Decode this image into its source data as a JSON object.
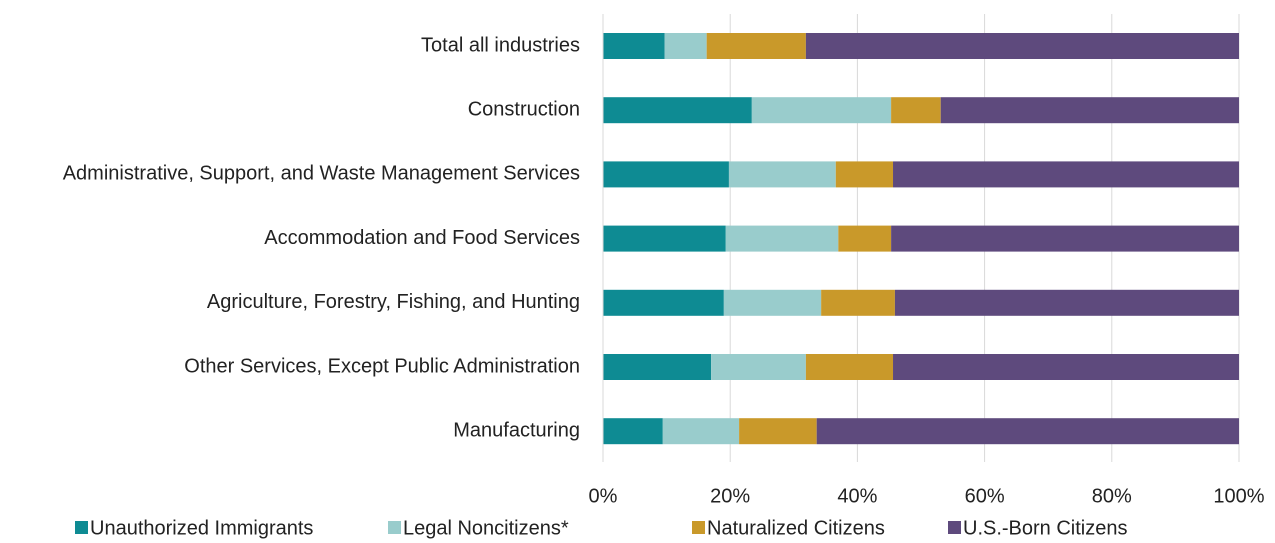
{
  "chart_data": {
    "type": "stacked-bar-horizontal",
    "categories": [
      "Total all industries",
      "Construction",
      "Administrative, Support, and Waste Management Services",
      "Accommodation and Food Services",
      "Agriculture, Forestry, Fishing, and Hunting",
      "Other Services, Except Public Administration",
      "Manufacturing"
    ],
    "series": [
      {
        "name": "Unauthorized Immigrants",
        "color": "#0e8b93",
        "values": [
          9.7,
          23.4,
          19.8,
          19.3,
          19.0,
          17.0,
          9.4
        ]
      },
      {
        "name": "Legal Noncitizens*",
        "color": "#99cccc",
        "values": [
          6.6,
          21.9,
          16.8,
          17.7,
          15.3,
          14.9,
          12.0
        ]
      },
      {
        "name": "Naturalized Citizens",
        "color": "#c9992a",
        "values": [
          15.6,
          7.8,
          9.0,
          8.3,
          11.6,
          13.7,
          12.2
        ]
      },
      {
        "name": "U.S.-Born Citizens",
        "color": "#5e4a7d",
        "values": [
          68.1,
          46.9,
          54.4,
          54.7,
          54.1,
          54.4,
          66.4
        ]
      }
    ],
    "xlim": [
      0,
      100
    ],
    "xticks": [
      {
        "value": 0,
        "label": "0%"
      },
      {
        "value": 20,
        "label": "20%"
      },
      {
        "value": 40,
        "label": "40%"
      },
      {
        "value": 60,
        "label": "60%"
      },
      {
        "value": 80,
        "label": "80%"
      },
      {
        "value": 100,
        "label": "100%"
      }
    ],
    "grid": true,
    "legend": "bottom"
  }
}
